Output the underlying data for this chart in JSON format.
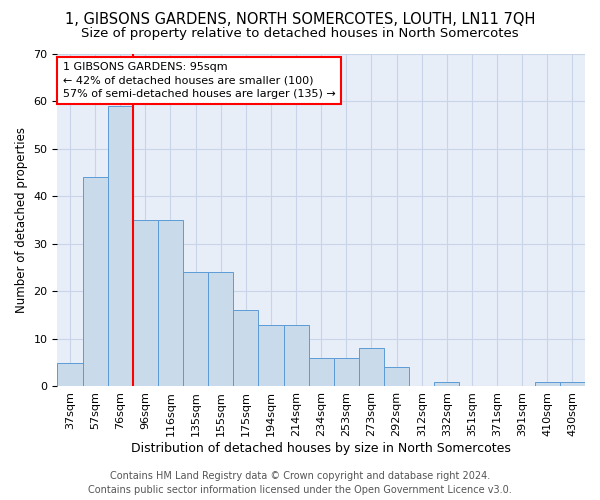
{
  "title": "1, GIBSONS GARDENS, NORTH SOMERCOTES, LOUTH, LN11 7QH",
  "subtitle": "Size of property relative to detached houses in North Somercotes",
  "xlabel": "Distribution of detached houses by size in North Somercotes",
  "ylabel": "Number of detached properties",
  "categories": [
    "37sqm",
    "57sqm",
    "76sqm",
    "96sqm",
    "116sqm",
    "135sqm",
    "155sqm",
    "175sqm",
    "194sqm",
    "214sqm",
    "234sqm",
    "253sqm",
    "273sqm",
    "292sqm",
    "312sqm",
    "332sqm",
    "351sqm",
    "371sqm",
    "391sqm",
    "410sqm",
    "430sqm"
  ],
  "values": [
    5,
    44,
    59,
    35,
    35,
    24,
    24,
    16,
    13,
    13,
    6,
    6,
    8,
    4,
    0,
    1,
    0,
    0,
    0,
    1,
    1
  ],
  "bar_color": "#c9daea",
  "bar_edge_color": "#5b9bd5",
  "annotation_text": "1 GIBSONS GARDENS: 95sqm\n← 42% of detached houses are smaller (100)\n57% of semi-detached houses are larger (135) →",
  "annotation_box_color": "white",
  "annotation_box_edge_color": "red",
  "vline_color": "red",
  "ylim": [
    0,
    70
  ],
  "yticks": [
    0,
    10,
    20,
    30,
    40,
    50,
    60,
    70
  ],
  "grid_color": "#c8d4e8",
  "background_color": "#e8eef8",
  "footer_line1": "Contains HM Land Registry data © Crown copyright and database right 2024.",
  "footer_line2": "Contains public sector information licensed under the Open Government Licence v3.0.",
  "title_fontsize": 10.5,
  "subtitle_fontsize": 9.5,
  "xlabel_fontsize": 9,
  "ylabel_fontsize": 8.5,
  "tick_fontsize": 8,
  "annotation_fontsize": 8,
  "footer_fontsize": 7
}
